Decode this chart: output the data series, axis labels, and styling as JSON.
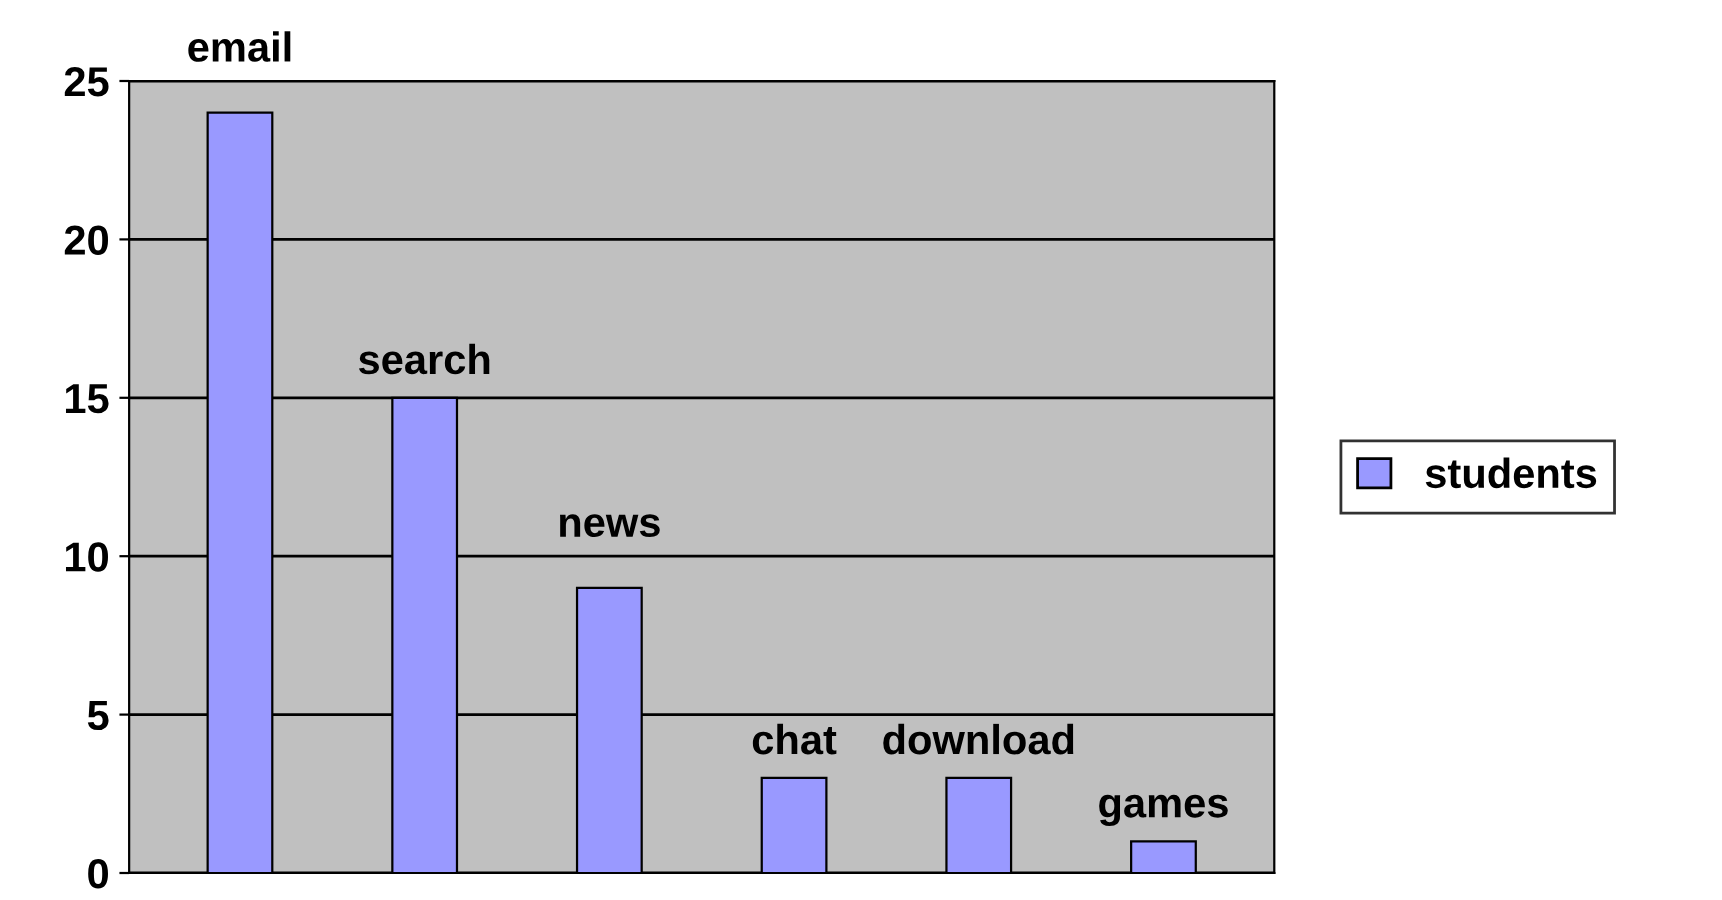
{
  "chart_data": {
    "type": "bar",
    "categories": [
      "email",
      "search",
      "news",
      "chat",
      "download",
      "games"
    ],
    "series": [
      {
        "name": "students",
        "color": "#9999ff",
        "values": [
          24,
          15,
          9,
          3,
          3,
          1
        ]
      }
    ],
    "ylim": [
      0,
      25
    ],
    "yticks": [
      0,
      5,
      10,
      15,
      20,
      25
    ],
    "grid": "y",
    "legend": "right",
    "tick_labels": "y"
  }
}
